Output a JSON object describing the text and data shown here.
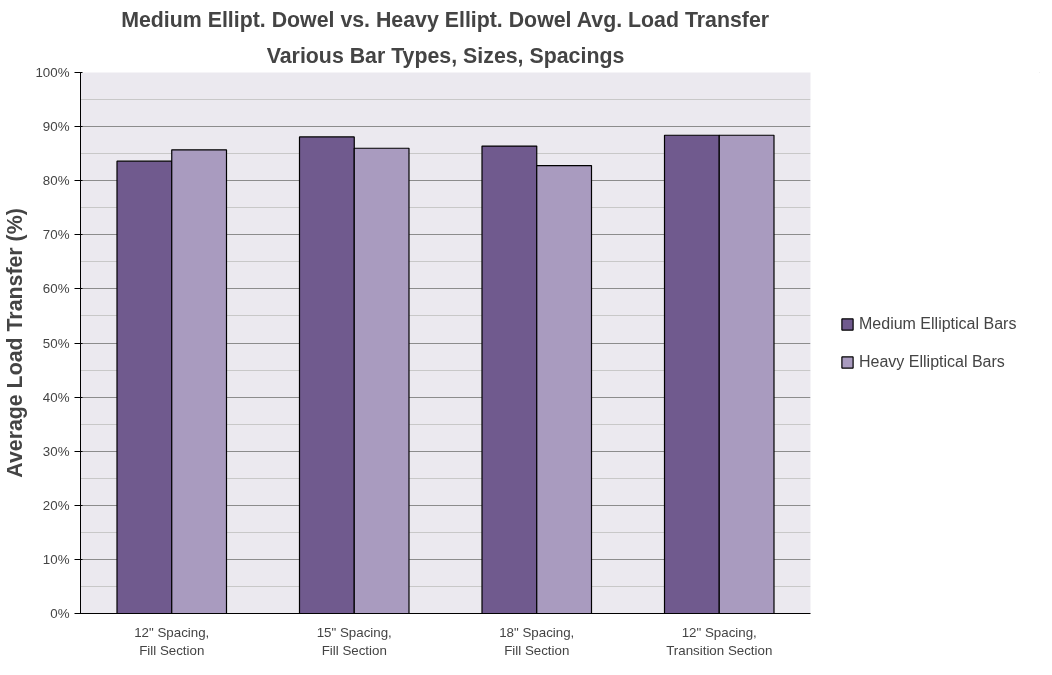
{
  "chart_data": {
    "type": "bar",
    "title": "Medium Ellipt. Dowel vs. Heavy Ellipt. Dowel Avg. Load Transfer",
    "subtitle": "Various Bar Types, Sizes, Spacings",
    "ylabel": "Average Load Transfer (%)",
    "categories": [
      "12\" Spacing, Fill Section",
      "15\" Spacing, Fill Section",
      "18\" Spacing, Fill Section",
      "12\" Spacing, Transition Section"
    ],
    "series": [
      {
        "name": "Medium Elliptical Bars",
        "color": "#705a8e",
        "values": [
          83.6,
          88.1,
          86.4,
          88.4
        ]
      },
      {
        "name": "Heavy Elliptical Bars",
        "color": "#a99bbf",
        "values": [
          85.7,
          86.0,
          82.8,
          88.4
        ]
      }
    ],
    "ylim": [
      0,
      100
    ],
    "yticks": [
      {
        "value": 0,
        "label": "0%"
      },
      {
        "value": 10,
        "label": "10%"
      },
      {
        "value": 20,
        "label": "20%"
      },
      {
        "value": 30,
        "label": "30%"
      },
      {
        "value": 40,
        "label": "40%"
      },
      {
        "value": 50,
        "label": "50%"
      },
      {
        "value": 60,
        "label": "60%"
      },
      {
        "value": 70,
        "label": "70%"
      },
      {
        "value": 80,
        "label": "80%"
      },
      {
        "value": 90,
        "label": "90%"
      },
      {
        "value": 100,
        "label": "100%"
      }
    ],
    "grid": "y",
    "legend": "right"
  }
}
